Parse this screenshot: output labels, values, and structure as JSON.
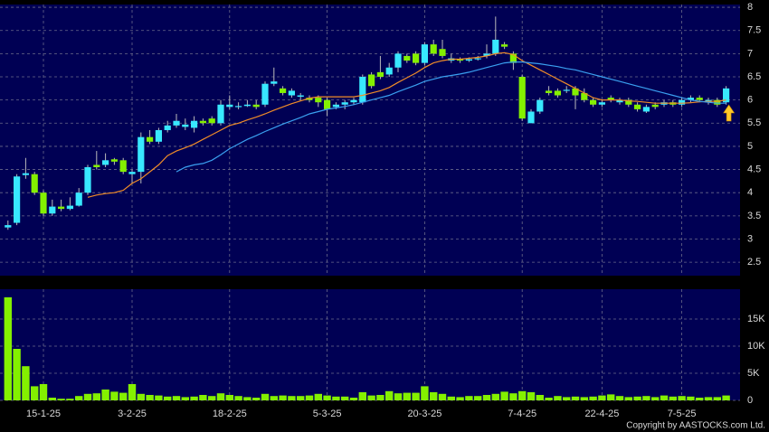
{
  "footer": "Copyright by AASTOCKS.com Ltd.",
  "chart_data": [
    {
      "type": "candlestick",
      "up_color": "#38e8ff",
      "down_color": "#84f000",
      "grid": true,
      "ylim": [
        2.21,
        8.06
      ],
      "yticks": [
        2.5,
        3,
        3.5,
        4,
        4.5,
        5,
        5.5,
        6,
        6.5,
        7,
        7.5,
        8
      ],
      "open": [
        3.25,
        3.35,
        4.38,
        4.4,
        4.0,
        3.55,
        3.7,
        3.65,
        3.72,
        4.0,
        4.6,
        4.6,
        4.72,
        4.7,
        4.4,
        4.45,
        5.2,
        5.1,
        5.35,
        5.45,
        5.42,
        5.4,
        5.55,
        5.6,
        5.5,
        5.85,
        5.85,
        5.87,
        5.9,
        5.9,
        6.35,
        6.25,
        6.1,
        6.07,
        6.05,
        6.05,
        6.0,
        5.85,
        5.9,
        5.95,
        5.95,
        6.55,
        6.6,
        6.55,
        6.7,
        6.95,
        7.0,
        6.8,
        7.2,
        7.1,
        6.85,
        6.88,
        6.85,
        6.88,
        6.95,
        7.0,
        7.2,
        7.0,
        6.5,
        5.5,
        5.75,
        6.2,
        6.2,
        6.2,
        6.25,
        6.15,
        6.0,
        5.9,
        6.05,
        5.95,
        6.0,
        5.9,
        5.75,
        5.9,
        5.9,
        5.95,
        5.9,
        6.0,
        6.05,
        5.95,
        6.0,
        5.95
      ],
      "high": [
        3.4,
        4.4,
        4.75,
        4.45,
        4.05,
        3.85,
        3.85,
        3.9,
        4.1,
        4.6,
        4.9,
        4.85,
        4.75,
        4.75,
        4.5,
        5.3,
        5.35,
        5.4,
        5.55,
        5.7,
        5.6,
        5.65,
        5.6,
        5.65,
        6.0,
        6.1,
        5.95,
        6.0,
        6.0,
        6.4,
        6.7,
        6.3,
        6.25,
        6.15,
        6.1,
        6.1,
        6.05,
        5.95,
        6.0,
        6.05,
        6.55,
        6.6,
        6.95,
        6.8,
        7.05,
        7.0,
        7.05,
        7.25,
        7.3,
        7.3,
        7.0,
        6.92,
        6.92,
        6.95,
        7.2,
        7.8,
        7.25,
        7.05,
        6.55,
        5.8,
        6.05,
        6.3,
        6.25,
        6.3,
        6.3,
        6.25,
        6.05,
        6.0,
        6.1,
        6.05,
        6.05,
        5.95,
        5.9,
        5.95,
        6.0,
        6.0,
        6.05,
        6.1,
        6.1,
        6.05,
        6.05,
        6.3
      ],
      "low": [
        3.2,
        3.3,
        4.3,
        3.95,
        3.5,
        3.5,
        3.6,
        3.62,
        3.7,
        3.95,
        4.5,
        4.55,
        4.6,
        4.4,
        4.2,
        4.2,
        5.05,
        5.05,
        5.3,
        5.4,
        5.35,
        5.3,
        5.45,
        5.45,
        5.45,
        5.8,
        5.8,
        5.85,
        5.8,
        5.85,
        6.3,
        6.1,
        6.05,
        6.0,
        5.95,
        5.85,
        5.65,
        5.8,
        5.8,
        5.9,
        5.9,
        6.25,
        6.45,
        6.5,
        6.6,
        6.8,
        6.75,
        6.75,
        6.95,
        6.9,
        6.8,
        6.8,
        6.82,
        6.85,
        6.9,
        6.95,
        7.1,
        6.65,
        5.55,
        5.5,
        5.7,
        6.1,
        6.05,
        6.15,
        5.8,
        5.95,
        5.85,
        5.85,
        5.95,
        5.9,
        5.85,
        5.75,
        5.72,
        5.8,
        5.85,
        5.85,
        5.85,
        5.95,
        5.95,
        5.9,
        5.85,
        5.9
      ],
      "close": [
        3.3,
        4.35,
        4.42,
        4.0,
        3.55,
        3.7,
        3.65,
        3.72,
        4.0,
        4.55,
        4.55,
        4.7,
        4.67,
        4.45,
        4.45,
        5.2,
        5.1,
        5.35,
        5.45,
        5.55,
        5.47,
        5.55,
        5.5,
        5.5,
        5.9,
        5.9,
        5.87,
        5.9,
        5.85,
        6.35,
        6.4,
        6.15,
        6.2,
        6.1,
        6.0,
        5.95,
        5.8,
        5.9,
        5.95,
        6.0,
        6.5,
        6.3,
        6.5,
        6.7,
        7.0,
        6.85,
        6.8,
        7.2,
        7.0,
        6.95,
        6.9,
        6.85,
        6.88,
        6.9,
        7.0,
        7.3,
        7.15,
        6.8,
        5.6,
        5.75,
        6.0,
        6.15,
        6.1,
        6.22,
        6.1,
        6.0,
        5.9,
        5.95,
        6.0,
        6.0,
        5.9,
        5.8,
        5.85,
        5.85,
        5.95,
        5.9,
        6.0,
        6.05,
        6.0,
        6.0,
        5.9,
        6.25
      ],
      "lines": [
        {
          "color": "#f08c28",
          "values": [
            null,
            null,
            null,
            null,
            null,
            null,
            null,
            null,
            null,
            3.9,
            3.95,
            3.98,
            4.0,
            4.05,
            4.2,
            4.3,
            4.45,
            4.6,
            4.8,
            4.9,
            4.97,
            5.05,
            5.15,
            5.25,
            5.35,
            5.45,
            5.5,
            5.57,
            5.63,
            5.7,
            5.78,
            5.85,
            5.92,
            5.98,
            6.04,
            6.07,
            6.07,
            6.07,
            6.07,
            6.07,
            6.1,
            6.15,
            6.2,
            6.27,
            6.38,
            6.48,
            6.58,
            6.7,
            6.8,
            6.85,
            6.88,
            6.88,
            6.9,
            6.92,
            6.95,
            7.0,
            7.02,
            6.98,
            6.85,
            6.75,
            6.65,
            6.55,
            6.45,
            6.35,
            6.25,
            6.15,
            6.05,
            6.0,
            6.0,
            6.0,
            5.98,
            5.97,
            5.95,
            5.93,
            5.93,
            5.93,
            5.93,
            5.94,
            5.96,
            5.97,
            5.97,
            6.0
          ]
        },
        {
          "color": "#3aa0f0",
          "values": [
            null,
            null,
            null,
            null,
            null,
            null,
            null,
            null,
            null,
            null,
            null,
            null,
            null,
            null,
            null,
            null,
            null,
            null,
            null,
            4.45,
            4.55,
            4.6,
            4.63,
            4.7,
            4.82,
            4.95,
            5.05,
            5.15,
            5.23,
            5.32,
            5.4,
            5.48,
            5.55,
            5.62,
            5.7,
            5.75,
            5.8,
            5.83,
            5.86,
            5.9,
            5.95,
            6.0,
            6.05,
            6.1,
            6.18,
            6.25,
            6.32,
            6.4,
            6.45,
            6.5,
            6.53,
            6.56,
            6.6,
            6.65,
            6.7,
            6.75,
            6.8,
            6.82,
            6.82,
            6.8,
            6.78,
            6.75,
            6.72,
            6.68,
            6.65,
            6.6,
            6.55,
            6.5,
            6.45,
            6.4,
            6.35,
            6.3,
            6.25,
            6.2,
            6.15,
            6.1,
            6.05,
            6.0,
            5.97,
            5.95,
            5.93,
            5.93
          ]
        }
      ]
    },
    {
      "type": "bar",
      "color": "#84f000",
      "grid": true,
      "ylim": [
        0,
        20500
      ],
      "yticks": [
        {
          "value": 0,
          "label": "0"
        },
        {
          "value": 5000,
          "label": "5K"
        },
        {
          "value": 10000,
          "label": "10K"
        },
        {
          "value": 15000,
          "label": "15K"
        }
      ],
      "categories": [
        null,
        null,
        null,
        null,
        "15-1-25",
        null,
        null,
        null,
        null,
        null,
        null,
        null,
        null,
        null,
        "3-2-25",
        null,
        null,
        null,
        null,
        null,
        null,
        null,
        null,
        null,
        null,
        "18-2-25",
        null,
        null,
        null,
        null,
        null,
        null,
        null,
        null,
        null,
        null,
        "5-3-25",
        null,
        null,
        null,
        null,
        null,
        null,
        null,
        null,
        null,
        null,
        "20-3-25",
        null,
        null,
        null,
        null,
        null,
        null,
        null,
        null,
        null,
        null,
        "7-4-25",
        null,
        null,
        null,
        null,
        null,
        null,
        null,
        null,
        "22-4-25",
        null,
        null,
        null,
        null,
        null,
        null,
        null,
        null,
        "7-5-25",
        null,
        null,
        null,
        null,
        null
      ],
      "values": [
        19000,
        9500,
        6300,
        2600,
        3000,
        500,
        300,
        300,
        800,
        1200,
        1300,
        2000,
        1600,
        1400,
        3000,
        1200,
        1000,
        900,
        700,
        800,
        600,
        700,
        1000,
        800,
        1300,
        1000,
        800,
        600,
        500,
        1200,
        800,
        900,
        800,
        800,
        900,
        1200,
        900,
        700,
        700,
        500,
        1500,
        900,
        1000,
        1700,
        1300,
        1400,
        1400,
        2600,
        1500,
        1200,
        700,
        600,
        800,
        800,
        1000,
        1200,
        1600,
        1300,
        1700,
        1500,
        1000,
        500,
        800,
        600,
        700,
        600,
        700,
        900,
        1100,
        800,
        600,
        700,
        800,
        600,
        900,
        700,
        800,
        700,
        500,
        600,
        600,
        900
      ]
    }
  ]
}
